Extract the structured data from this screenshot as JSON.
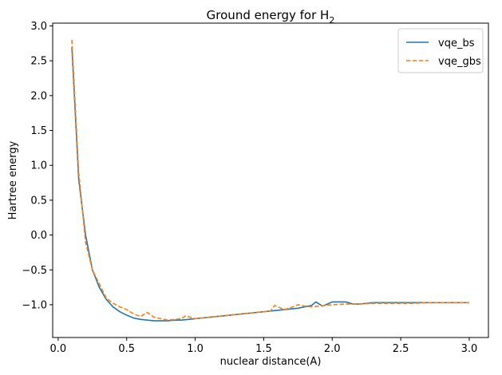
{
  "chart_data": {
    "type": "line",
    "title": "Ground energy for H",
    "title_subscript": "2",
    "xlabel": "nuclear distance(A)",
    "ylabel": "Hartree energy",
    "xlim": [
      -0.04,
      3.14
    ],
    "ylim": [
      -1.47,
      3.04
    ],
    "xticks": [
      0.0,
      0.5,
      1.0,
      1.5,
      2.0,
      2.5,
      3.0
    ],
    "xtick_labels": [
      "0.0",
      "0.5",
      "1.0",
      "1.5",
      "2.0",
      "2.5",
      "3.0"
    ],
    "yticks": [
      -1.0,
      -0.5,
      0.0,
      0.5,
      1.0,
      1.5,
      2.0,
      2.5,
      3.0
    ],
    "ytick_labels": [
      "−1.0",
      "−0.5",
      "0.0",
      "0.5",
      "1.0",
      "1.5",
      "2.0",
      "2.5",
      "3.0"
    ],
    "legend_position": "top-right",
    "grid": false,
    "series": [
      {
        "name": "vqe_bs",
        "color": "#1f77b4",
        "style": "solid",
        "x": [
          0.1,
          0.15,
          0.2,
          0.25,
          0.3,
          0.35,
          0.4,
          0.45,
          0.5,
          0.55,
          0.6,
          0.65,
          0.7,
          0.75,
          0.8,
          0.85,
          0.9,
          0.95,
          1.0,
          1.1,
          1.2,
          1.3,
          1.4,
          1.5,
          1.6,
          1.7,
          1.75,
          1.8,
          1.85,
          1.88,
          1.93,
          2.0,
          2.05,
          2.1,
          2.15,
          2.2,
          2.25,
          2.3,
          2.4,
          2.5,
          2.6,
          2.7,
          2.8,
          2.9,
          3.0
        ],
        "y": [
          2.7,
          0.8,
          0.0,
          -0.5,
          -0.75,
          -0.92,
          -1.03,
          -1.1,
          -1.15,
          -1.19,
          -1.21,
          -1.22,
          -1.23,
          -1.23,
          -1.23,
          -1.22,
          -1.22,
          -1.21,
          -1.2,
          -1.18,
          -1.16,
          -1.14,
          -1.12,
          -1.1,
          -1.08,
          -1.06,
          -1.05,
          -1.03,
          -1.01,
          -0.96,
          -1.02,
          -0.96,
          -0.96,
          -0.96,
          -0.99,
          -0.99,
          -0.98,
          -0.97,
          -0.97,
          -0.97,
          -0.97,
          -0.97,
          -0.97,
          -0.97,
          -0.97
        ]
      },
      {
        "name": "vqe_gbs",
        "color": "#ff7f0e",
        "style": "dashed",
        "x": [
          0.1,
          0.15,
          0.2,
          0.25,
          0.3,
          0.35,
          0.4,
          0.45,
          0.5,
          0.55,
          0.6,
          0.65,
          0.7,
          0.75,
          0.8,
          0.85,
          0.9,
          0.93,
          1.0,
          1.1,
          1.2,
          1.3,
          1.4,
          1.5,
          1.55,
          1.58,
          1.65,
          1.7,
          1.75,
          1.8,
          1.85,
          1.9,
          2.0,
          2.1,
          2.2,
          2.3,
          2.4,
          2.5,
          2.6,
          2.7,
          2.8,
          2.9,
          3.0
        ],
        "y": [
          2.8,
          0.9,
          -0.1,
          -0.5,
          -0.7,
          -0.9,
          -0.98,
          -1.03,
          -1.07,
          -1.13,
          -1.17,
          -1.11,
          -1.18,
          -1.2,
          -1.22,
          -1.21,
          -1.2,
          -1.16,
          -1.2,
          -1.18,
          -1.16,
          -1.14,
          -1.12,
          -1.1,
          -1.09,
          -1.01,
          -1.07,
          -1.04,
          -1.0,
          -1.02,
          -1.03,
          -1.02,
          -1.0,
          -0.99,
          -0.99,
          -0.98,
          -0.98,
          -0.98,
          -0.98,
          -0.97,
          -0.97,
          -0.97,
          -0.97
        ]
      }
    ]
  }
}
